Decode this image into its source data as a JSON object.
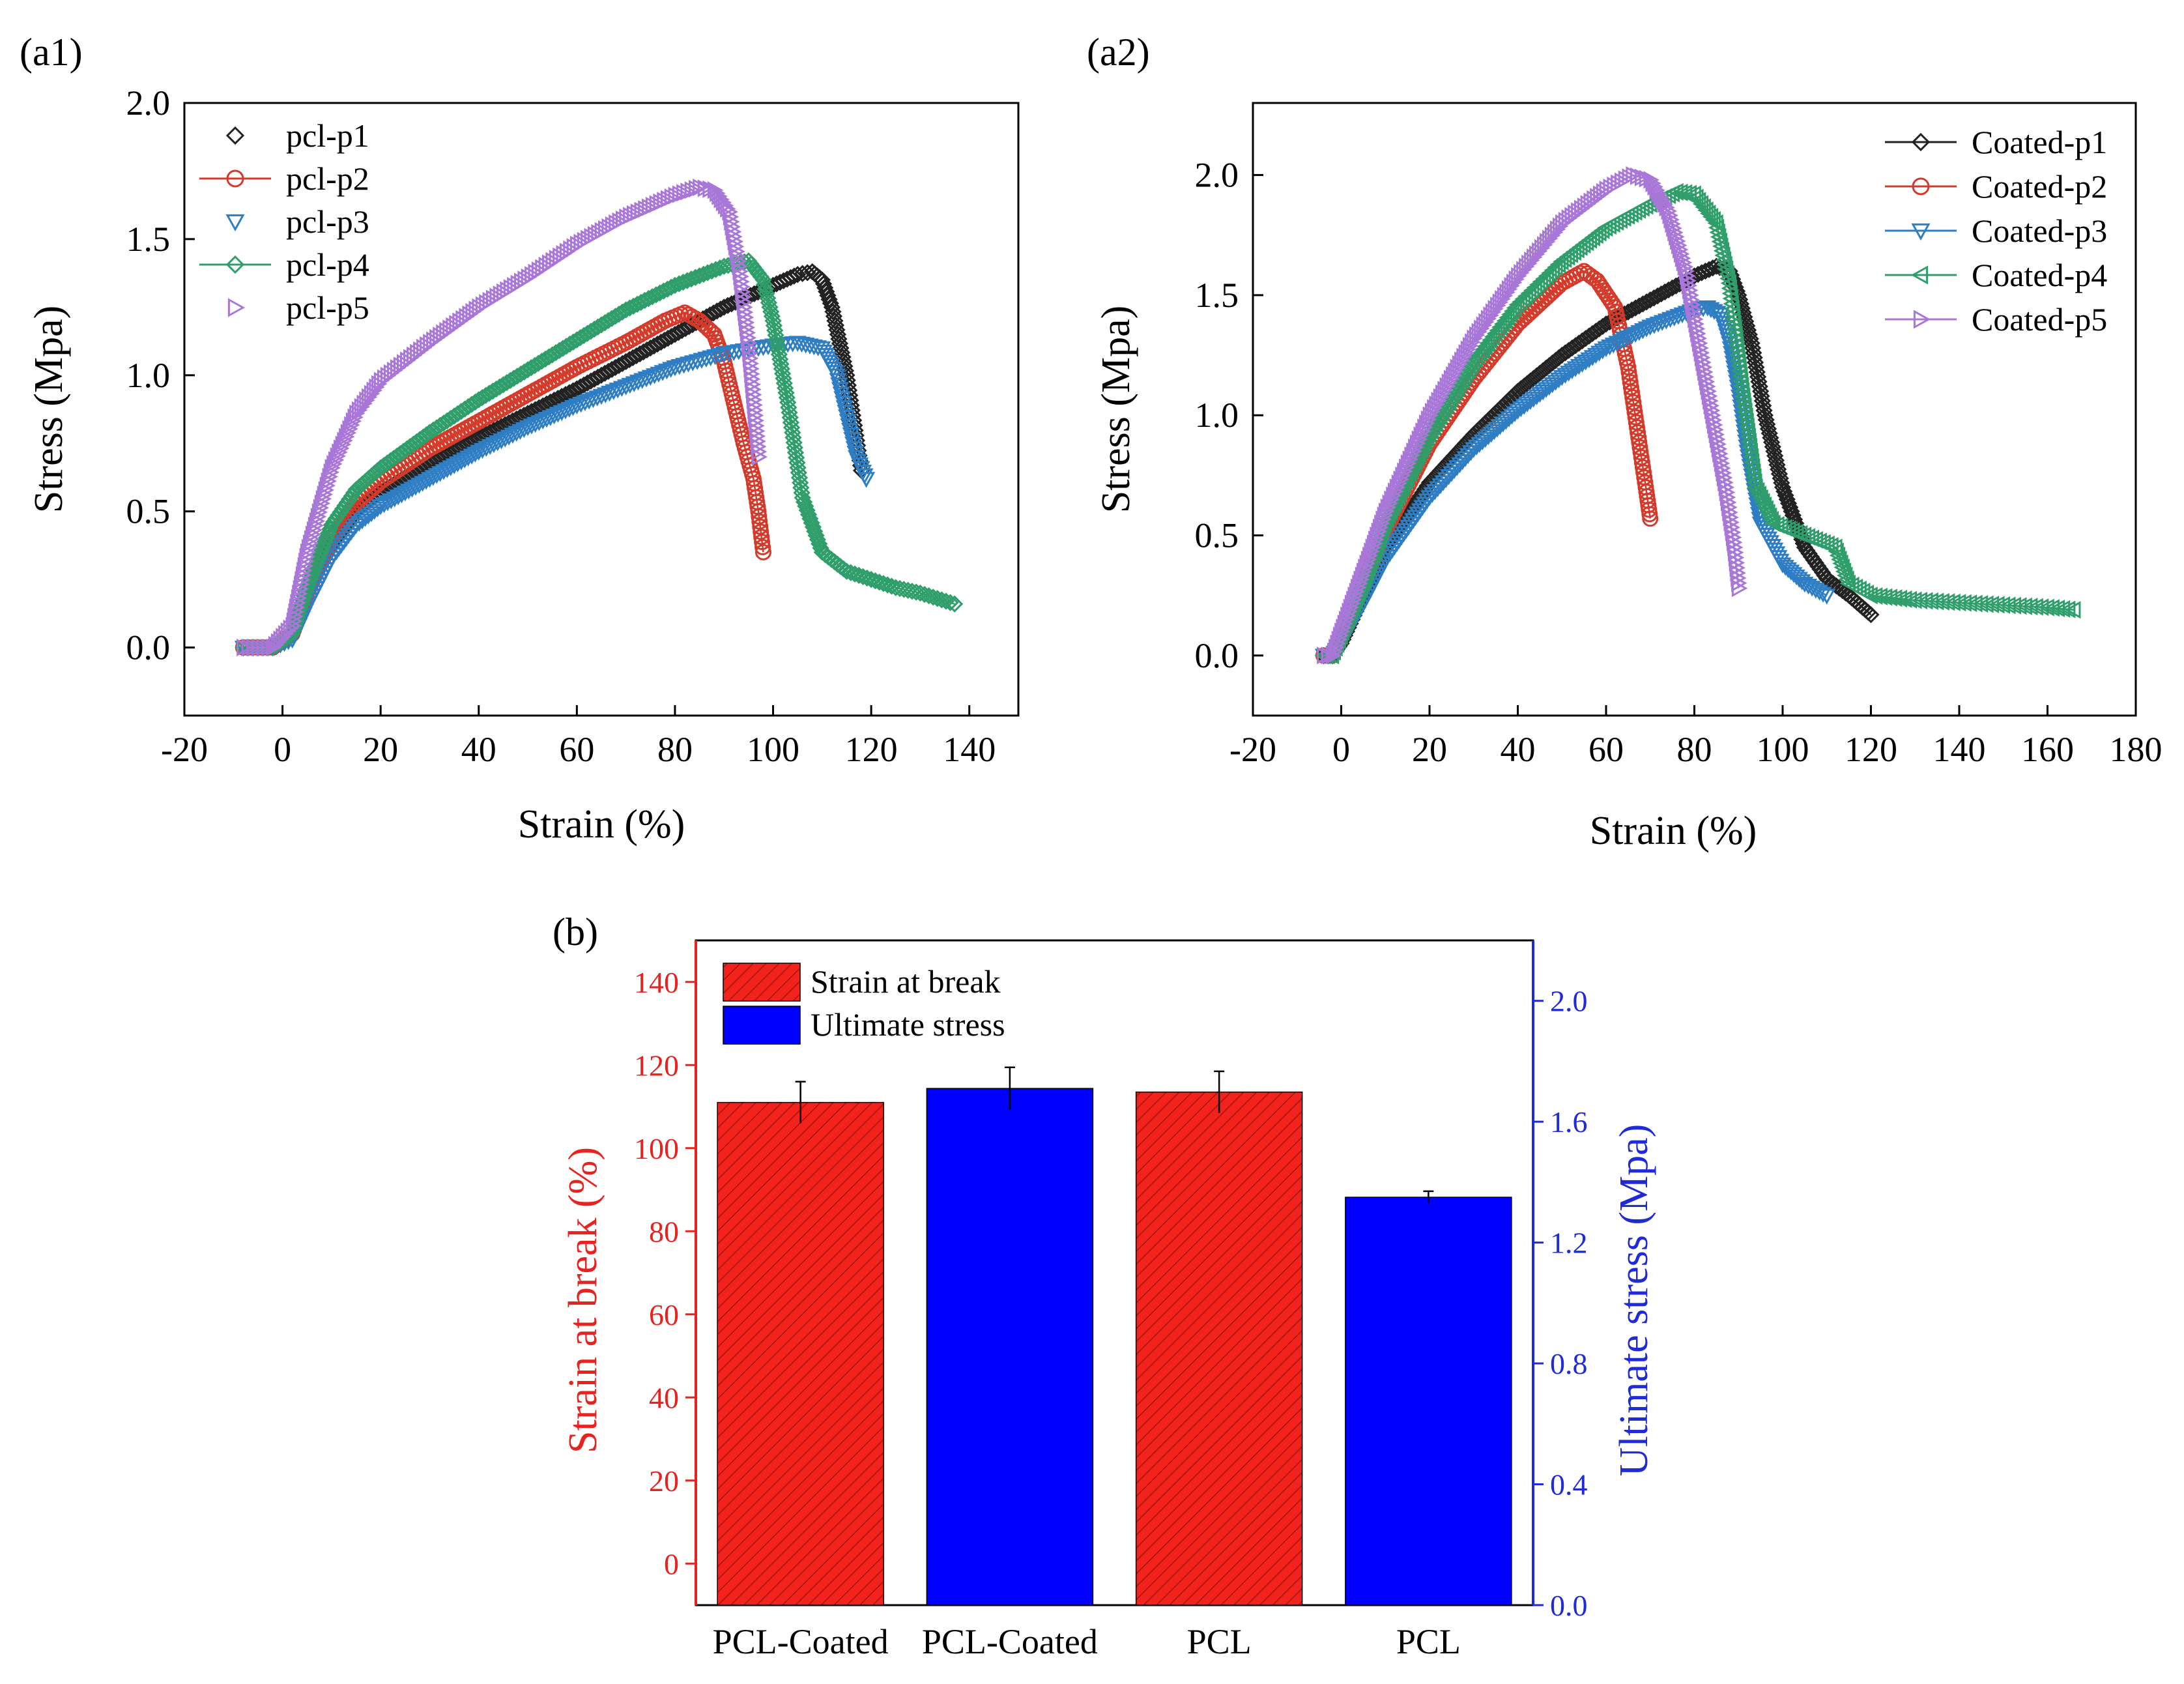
{
  "chart_data": [
    {
      "id": "a1",
      "panel_label": "(a1)",
      "type": "scatter",
      "xlabel": "Strain (%)",
      "ylabel": "Stress (Mpa)",
      "xlim": [
        -20,
        150
      ],
      "ylim": [
        -0.25,
        2.0
      ],
      "xticks": [
        -20,
        0,
        20,
        40,
        60,
        80,
        100,
        120,
        140
      ],
      "yticks": [
        0.0,
        0.5,
        1.0,
        1.5,
        2.0
      ],
      "xtick_labels": [
        "-20",
        "0",
        "20",
        "40",
        "60",
        "80",
        "100",
        "120",
        "140"
      ],
      "ytick_labels": [
        "0.0",
        "0.5",
        "1.0",
        "1.5",
        "2.0"
      ],
      "legend": "top-left",
      "series": [
        {
          "name": "pcl-p1",
          "color": "#222222",
          "marker": "diamond",
          "line": false,
          "x": [
            -8,
            -2,
            2,
            5,
            10,
            15,
            20,
            30,
            40,
            50,
            60,
            70,
            80,
            90,
            100,
            105,
            108,
            110,
            112,
            115,
            118
          ],
          "y": [
            0,
            0,
            0.05,
            0.2,
            0.38,
            0.5,
            0.57,
            0.68,
            0.77,
            0.86,
            0.95,
            1.05,
            1.15,
            1.25,
            1.33,
            1.37,
            1.38,
            1.35,
            1.25,
            1.0,
            0.65
          ]
        },
        {
          "name": "pcl-p2",
          "color": "#d43a2a",
          "marker": "circle",
          "line": true,
          "x": [
            -8,
            -2,
            2,
            5,
            10,
            15,
            20,
            30,
            40,
            50,
            60,
            70,
            78,
            82,
            85,
            88,
            90,
            92,
            94,
            96,
            97,
            98
          ],
          "y": [
            0,
            0,
            0.05,
            0.2,
            0.4,
            0.53,
            0.61,
            0.73,
            0.83,
            0.93,
            1.03,
            1.12,
            1.2,
            1.23,
            1.2,
            1.15,
            1.05,
            0.9,
            0.75,
            0.62,
            0.5,
            0.35
          ]
        },
        {
          "name": "pcl-p3",
          "color": "#2f7ec4",
          "marker": "triangle-down",
          "line": false,
          "x": [
            -8,
            -2,
            2,
            5,
            10,
            15,
            20,
            30,
            40,
            50,
            60,
            70,
            80,
            90,
            100,
            105,
            110,
            113,
            115,
            117,
            119
          ],
          "y": [
            0,
            0,
            0.03,
            0.15,
            0.33,
            0.45,
            0.52,
            0.62,
            0.72,
            0.81,
            0.89,
            0.96,
            1.03,
            1.08,
            1.11,
            1.12,
            1.1,
            1.0,
            0.85,
            0.7,
            0.62
          ]
        },
        {
          "name": "pcl-p4",
          "color": "#2f9e6a",
          "marker": "diamond",
          "line": true,
          "x": [
            -8,
            -2,
            2,
            5,
            10,
            15,
            20,
            30,
            40,
            50,
            60,
            70,
            80,
            90,
            95,
            98,
            100,
            103,
            106,
            110,
            115,
            120,
            125,
            130,
            137
          ],
          "y": [
            0,
            0,
            0.05,
            0.22,
            0.45,
            0.58,
            0.66,
            0.79,
            0.91,
            1.02,
            1.13,
            1.24,
            1.33,
            1.4,
            1.42,
            1.35,
            1.2,
            0.9,
            0.55,
            0.35,
            0.28,
            0.25,
            0.22,
            0.2,
            0.16
          ]
        },
        {
          "name": "pcl-p5",
          "color": "#a877d8",
          "marker": "triangle-right",
          "line": false,
          "x": [
            -8,
            -2,
            2,
            5,
            10,
            15,
            20,
            30,
            40,
            50,
            60,
            70,
            80,
            85,
            88,
            91,
            93,
            95,
            97
          ],
          "y": [
            0,
            0,
            0.08,
            0.35,
            0.66,
            0.86,
            0.98,
            1.12,
            1.25,
            1.36,
            1.48,
            1.58,
            1.66,
            1.69,
            1.68,
            1.6,
            1.4,
            1.1,
            0.7
          ]
        }
      ]
    },
    {
      "id": "a2",
      "panel_label": "(a2)",
      "type": "scatter",
      "xlabel": "Strain (%)",
      "ylabel": "Stress (Mpa)",
      "xlim": [
        -20,
        180
      ],
      "ylim": [
        -0.25,
        2.3
      ],
      "xticks": [
        -20,
        0,
        20,
        40,
        60,
        80,
        100,
        120,
        140,
        160,
        180
      ],
      "yticks": [
        0.0,
        0.5,
        1.0,
        1.5,
        2.0
      ],
      "xtick_labels": [
        "-20",
        "0",
        "20",
        "40",
        "60",
        "80",
        "100",
        "120",
        "140",
        "160",
        "180"
      ],
      "ytick_labels": [
        "0.0",
        "0.5",
        "1.0",
        "1.5",
        "2.0"
      ],
      "legend": "top-right",
      "series": [
        {
          "name": "Coated-p1",
          "color": "#222222",
          "marker": "diamond",
          "line": true,
          "x": [
            -4,
            -2,
            0,
            5,
            10,
            20,
            30,
            40,
            50,
            60,
            70,
            80,
            85,
            88,
            90,
            93,
            96,
            100,
            105,
            110,
            115,
            120
          ],
          "y": [
            0,
            0,
            0.05,
            0.25,
            0.45,
            0.72,
            0.92,
            1.1,
            1.25,
            1.38,
            1.48,
            1.58,
            1.62,
            1.6,
            1.5,
            1.3,
            1.0,
            0.7,
            0.45,
            0.32,
            0.25,
            0.17
          ]
        },
        {
          "name": "Coated-p2",
          "color": "#d43a2a",
          "marker": "circle",
          "line": true,
          "x": [
            -4,
            -2,
            0,
            5,
            10,
            20,
            30,
            40,
            50,
            55,
            58,
            62,
            65,
            67,
            69,
            70
          ],
          "y": [
            0,
            0,
            0.08,
            0.3,
            0.52,
            0.88,
            1.15,
            1.38,
            1.55,
            1.6,
            1.56,
            1.45,
            1.2,
            0.95,
            0.7,
            0.57
          ]
        },
        {
          "name": "Coated-p3",
          "color": "#2f7ec4",
          "marker": "triangle-down",
          "line": true,
          "x": [
            -4,
            -2,
            0,
            5,
            10,
            20,
            30,
            40,
            50,
            60,
            70,
            80,
            83,
            86,
            88,
            90,
            92,
            95,
            100,
            105,
            110
          ],
          "y": [
            0,
            0,
            0.05,
            0.22,
            0.4,
            0.66,
            0.86,
            1.02,
            1.16,
            1.28,
            1.37,
            1.44,
            1.45,
            1.42,
            1.3,
            1.1,
            0.85,
            0.55,
            0.38,
            0.3,
            0.25
          ]
        },
        {
          "name": "Coated-p4",
          "color": "#2f9e6a",
          "marker": "triangle-left",
          "line": true,
          "x": [
            -4,
            -2,
            0,
            5,
            10,
            20,
            30,
            40,
            50,
            60,
            70,
            76,
            80,
            85,
            88,
            91,
            94,
            98,
            105,
            112,
            115,
            120,
            130,
            140,
            150,
            160,
            166
          ],
          "y": [
            0,
            0,
            0.08,
            0.3,
            0.55,
            0.92,
            1.22,
            1.46,
            1.64,
            1.78,
            1.88,
            1.93,
            1.92,
            1.8,
            1.55,
            1.1,
            0.7,
            0.55,
            0.5,
            0.45,
            0.3,
            0.25,
            0.23,
            0.22,
            0.21,
            0.2,
            0.19
          ]
        },
        {
          "name": "Coated-p5",
          "color": "#a877d8",
          "marker": "triangle-right",
          "line": true,
          "x": [
            -4,
            -2,
            0,
            5,
            10,
            20,
            30,
            40,
            50,
            60,
            66,
            70,
            74,
            78,
            81,
            84,
            87,
            89,
            90
          ],
          "y": [
            0,
            0,
            0.1,
            0.35,
            0.6,
            1.0,
            1.32,
            1.58,
            1.8,
            1.94,
            2.0,
            1.98,
            1.85,
            1.6,
            1.3,
            1.0,
            0.7,
            0.45,
            0.28
          ]
        }
      ]
    },
    {
      "id": "b",
      "panel_label": "(b)",
      "type": "bar",
      "categories": [
        "PCL-Coated",
        "PCL-Coated",
        "PCL",
        "PCL"
      ],
      "y_left": {
        "label": "Strain at break (%)",
        "color": "#e8231f",
        "lim": [
          -10,
          150
        ],
        "ticks": [
          0,
          20,
          40,
          60,
          80,
          100,
          120,
          140
        ],
        "tick_labels": [
          "0",
          "20",
          "40",
          "60",
          "80",
          "100",
          "120",
          "140"
        ]
      },
      "y_right": {
        "label": "Ultimate stress (Mpa)",
        "color": "#1f2bd6",
        "lim": [
          0,
          2.2
        ],
        "ticks": [
          0.0,
          0.4,
          0.8,
          1.2,
          1.6,
          2.0
        ],
        "tick_labels": [
          "0.0",
          "0.4",
          "0.8",
          "1.2",
          "1.6",
          "2.0"
        ]
      },
      "bars": [
        {
          "category": "PCL-Coated",
          "series": "Strain at break",
          "axis": "left",
          "value": 111,
          "error": 5
        },
        {
          "category": "PCL-Coated",
          "series": "Ultimate stress",
          "axis": "right",
          "value": 1.71,
          "error": 0.07
        },
        {
          "category": "PCL",
          "series": "Strain at break",
          "axis": "left",
          "value": 113.5,
          "error": 5
        },
        {
          "category": "PCL",
          "series": "Ultimate stress",
          "axis": "right",
          "value": 1.35,
          "error": 0.02
        }
      ],
      "legend": {
        "position": "top-left",
        "entries": [
          {
            "label": "Strain at break",
            "color": "#f2231c",
            "pattern": "hatch"
          },
          {
            "label": "Ultimate stress",
            "color": "#0000ff",
            "pattern": "solid"
          }
        ]
      }
    }
  ]
}
